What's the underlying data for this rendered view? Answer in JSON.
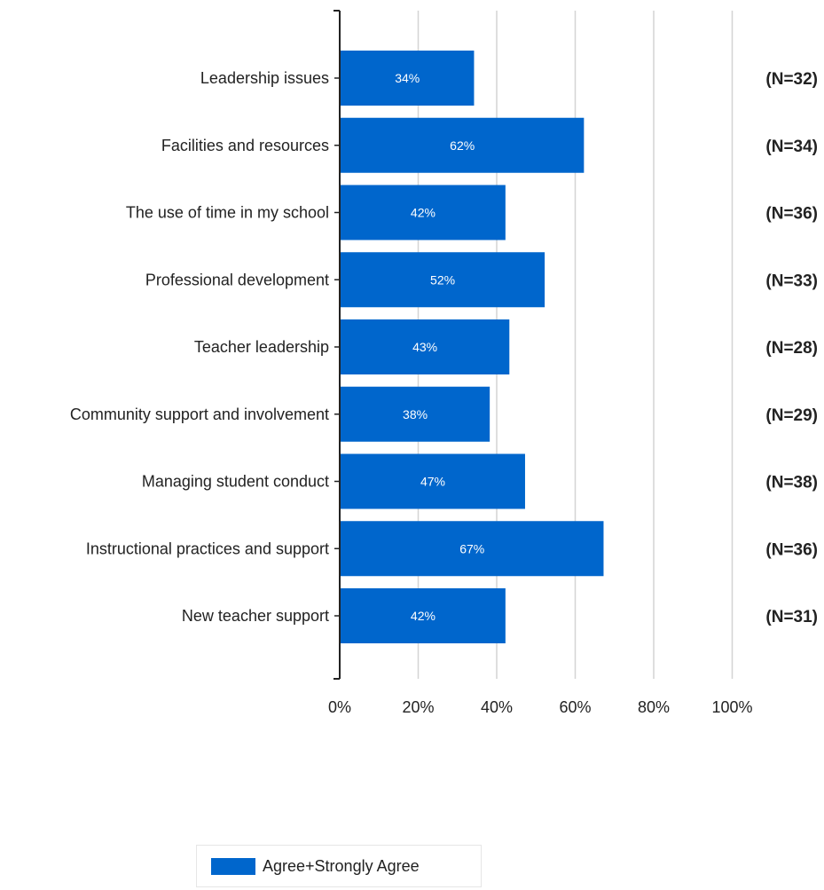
{
  "chart_data": {
    "type": "bar",
    "orientation": "horizontal",
    "categories": [
      "Leadership issues",
      "Facilities and resources",
      "The use of time in my school",
      "Professional development",
      "Teacher leadership",
      "Community support and involvement",
      "Managing student conduct",
      "Instructional practices and support",
      "New teacher support"
    ],
    "series": [
      {
        "name": "Agree+Strongly Agree",
        "values": [
          34,
          62,
          42,
          52,
          43,
          38,
          47,
          67,
          42
        ],
        "value_labels": [
          "34%",
          "62%",
          "42%",
          "52%",
          "43%",
          "38%",
          "47%",
          "67%",
          "42%"
        ],
        "color": "#0066CC"
      }
    ],
    "annotations": [
      "(N=32)",
      "(N=34)",
      "(N=36)",
      "(N=33)",
      "(N=28)",
      "(N=29)",
      "(N=38)",
      "(N=36)",
      "(N=31)"
    ],
    "xlim": [
      0,
      100
    ],
    "xticks": [
      "0%",
      "20%",
      "40%",
      "60%",
      "80%",
      "100%"
    ],
    "grid": "vertical",
    "legend_position": "bottom"
  },
  "legend": {
    "label": "Agree+Strongly Agree"
  }
}
